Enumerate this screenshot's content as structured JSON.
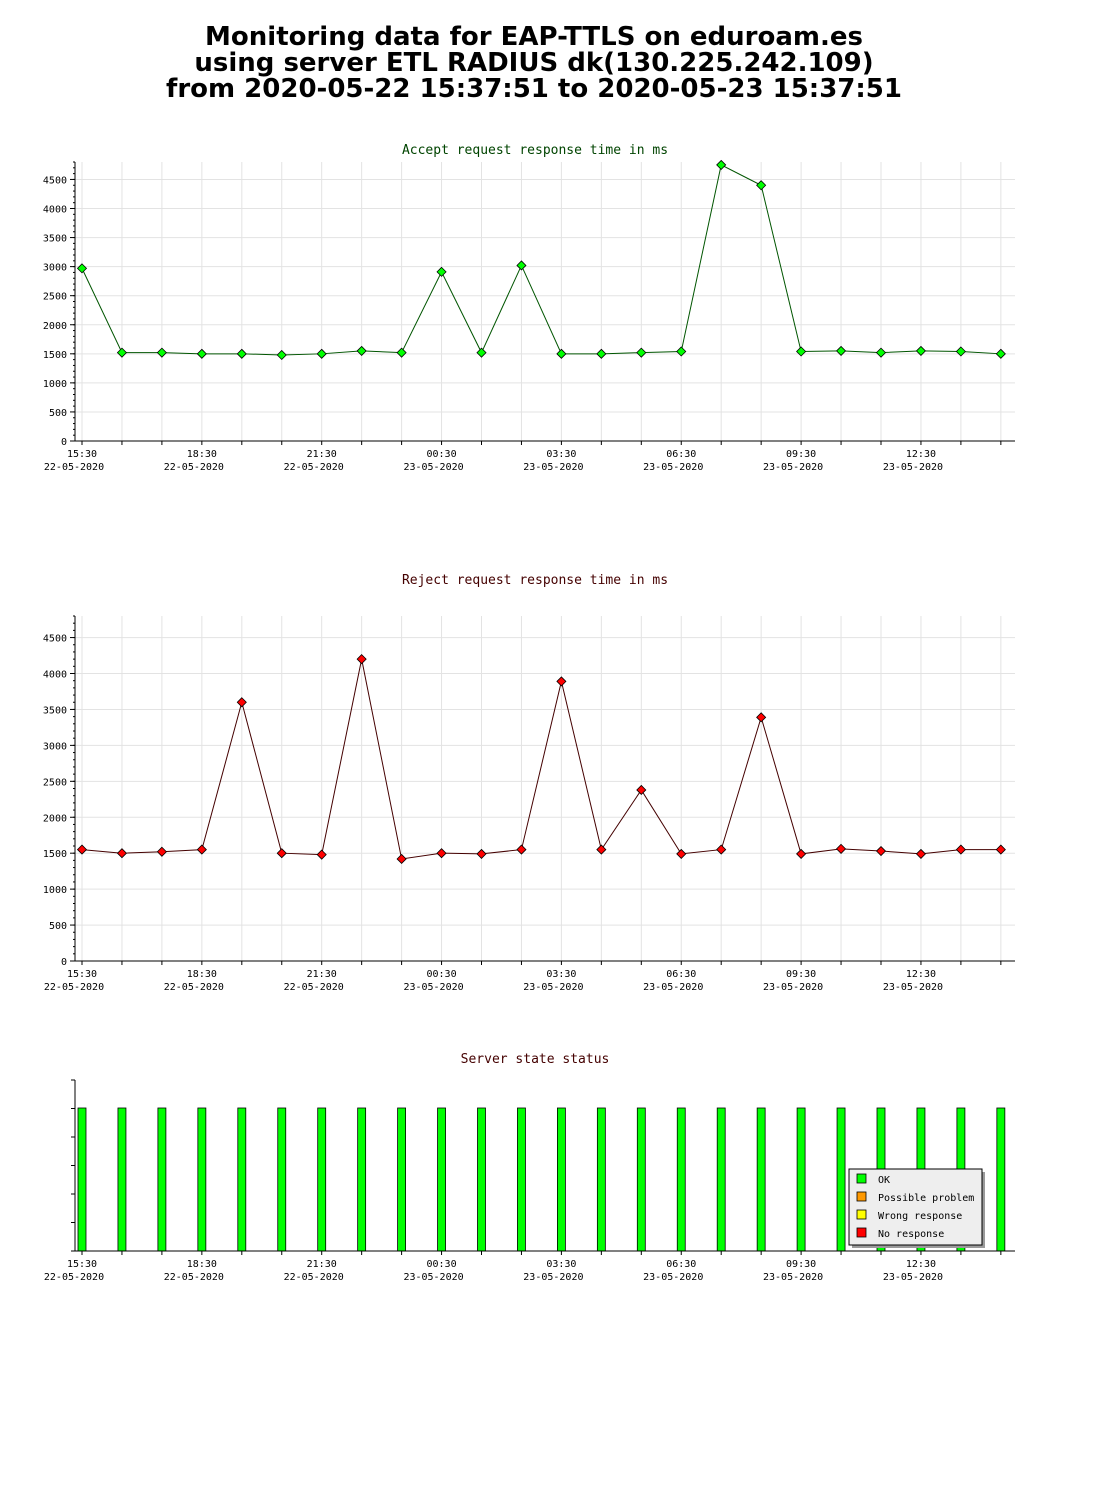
{
  "header": {
    "line1": "Monitoring data for EAP-TTLS on eduroam.es",
    "line2": "using server ETL RADIUS dk(130.225.242.109)",
    "line3": "from 2020-05-22 15:37:51 to 2020-05-23 15:37:51"
  },
  "chart_data": [
    {
      "type": "line",
      "title": "Accept request response time in ms",
      "color": "#00ff00",
      "line_color": "#005500",
      "title_color": "#004400",
      "ylim": [
        0,
        4800
      ],
      "yticks": [
        0,
        500,
        1000,
        1500,
        2000,
        2500,
        3000,
        3500,
        4000,
        4500
      ],
      "x_tick_labels": [
        {
          "time": "15:30",
          "date": "22-05-2020"
        },
        {
          "time": "18:30",
          "date": "22-05-2020"
        },
        {
          "time": "21:30",
          "date": "22-05-2020"
        },
        {
          "time": "00:30",
          "date": "23-05-2020"
        },
        {
          "time": "03:30",
          "date": "23-05-2020"
        },
        {
          "time": "06:30",
          "date": "23-05-2020"
        },
        {
          "time": "09:30",
          "date": "23-05-2020"
        },
        {
          "time": "12:30",
          "date": "23-05-2020"
        }
      ],
      "values": [
        2970,
        1520,
        1520,
        1500,
        1500,
        1480,
        1500,
        1550,
        1520,
        2910,
        1520,
        3020,
        1500,
        1500,
        1520,
        1540,
        4750,
        4400,
        1540,
        1550,
        1520,
        1550,
        1540,
        1500
      ]
    },
    {
      "type": "line",
      "title": "Reject request response time in ms",
      "color": "#ff0000",
      "line_color": "#440000",
      "title_color": "#440000",
      "ylim": [
        0,
        4800
      ],
      "yticks": [
        0,
        500,
        1000,
        1500,
        2000,
        2500,
        3000,
        3500,
        4000,
        4500
      ],
      "x_tick_labels": [
        {
          "time": "15:30",
          "date": "22-05-2020"
        },
        {
          "time": "18:30",
          "date": "22-05-2020"
        },
        {
          "time": "21:30",
          "date": "22-05-2020"
        },
        {
          "time": "00:30",
          "date": "23-05-2020"
        },
        {
          "time": "03:30",
          "date": "23-05-2020"
        },
        {
          "time": "06:30",
          "date": "23-05-2020"
        },
        {
          "time": "09:30",
          "date": "23-05-2020"
        },
        {
          "time": "12:30",
          "date": "23-05-2020"
        }
      ],
      "values": [
        1550,
        1500,
        1520,
        1550,
        3600,
        1500,
        1480,
        4200,
        1420,
        1500,
        1490,
        1550,
        3890,
        1550,
        2380,
        1490,
        1550,
        3390,
        1490,
        1560,
        1530,
        1490,
        1550,
        1550
      ]
    },
    {
      "type": "bar",
      "title": "Server state status",
      "title_color": "#440000",
      "x_tick_labels": [
        {
          "time": "15:30",
          "date": "22-05-2020"
        },
        {
          "time": "18:30",
          "date": "22-05-2020"
        },
        {
          "time": "21:30",
          "date": "22-05-2020"
        },
        {
          "time": "00:30",
          "date": "23-05-2020"
        },
        {
          "time": "03:30",
          "date": "23-05-2020"
        },
        {
          "time": "06:30",
          "date": "23-05-2020"
        },
        {
          "time": "09:30",
          "date": "23-05-2020"
        },
        {
          "time": "12:30",
          "date": "23-05-2020"
        }
      ],
      "states": [
        "OK",
        "OK",
        "OK",
        "OK",
        "OK",
        "OK",
        "OK",
        "OK",
        "OK",
        "OK",
        "OK",
        "OK",
        "OK",
        "OK",
        "OK",
        "OK",
        "OK",
        "OK",
        "OK",
        "OK",
        "OK",
        "OK",
        "OK",
        "OK"
      ],
      "legend": [
        {
          "label": "OK",
          "color": "#00ff00"
        },
        {
          "label": "Possible problem",
          "color": "#ff9900"
        },
        {
          "label": "Wrong response",
          "color": "#ffff00"
        },
        {
          "label": "No response",
          "color": "#ff0000"
        }
      ]
    }
  ]
}
